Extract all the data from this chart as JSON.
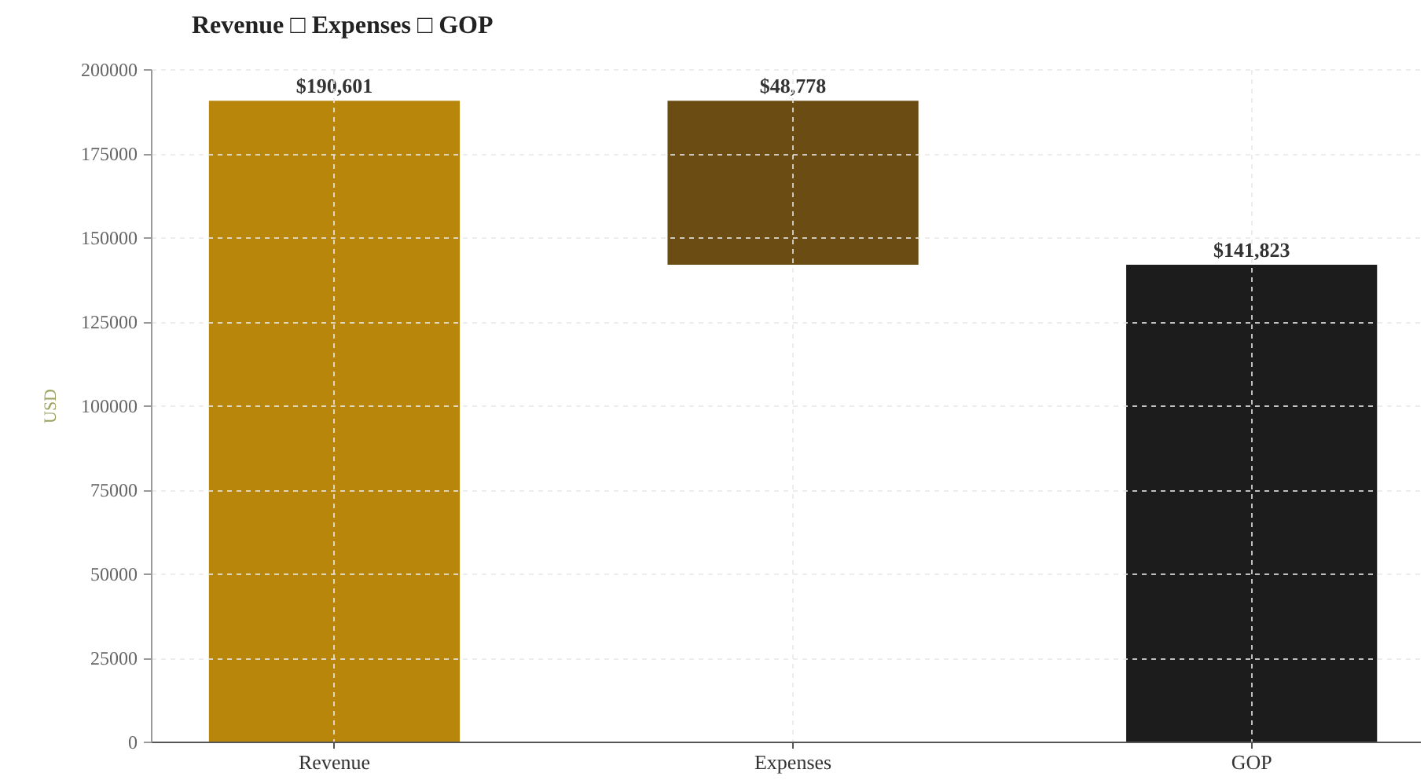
{
  "chart_data": {
    "type": "bar",
    "title": "Revenue □ Expenses □ GOP",
    "ylabel": "USD",
    "categories": [
      "Revenue",
      "Expenses",
      "GOP"
    ],
    "values": [
      190601,
      48778,
      141823
    ],
    "base": [
      0,
      141823,
      0
    ],
    "colors": [
      "#b8860b",
      "#6b4c13",
      "#1c1c1c"
    ],
    "value_labels": [
      "$190,601",
      "$48,778",
      "$141,823"
    ],
    "ylim": [
      0,
      200000
    ],
    "yticks": [
      0,
      25000,
      50000,
      75000,
      100000,
      125000,
      150000,
      175000,
      200000
    ],
    "grid": true
  }
}
